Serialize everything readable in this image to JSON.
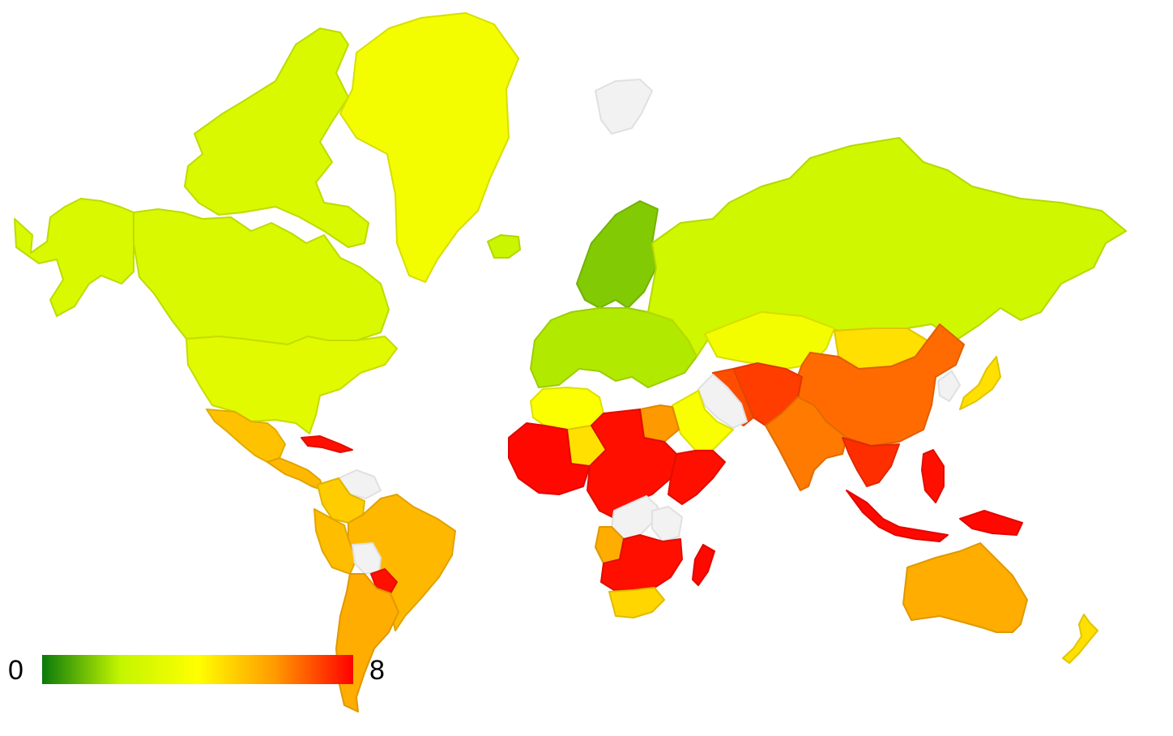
{
  "map": {
    "type": "choropleth",
    "scale_min": 0,
    "scale_max": 8,
    "legend_min_label": "0",
    "legend_max_label": "8",
    "color_stops": [
      "#0a7a0a",
      "#c3f500",
      "#ffff00",
      "#ff9900",
      "#ff0000"
    ],
    "no_data_color": "#f2f2f2",
    "regions": [
      {
        "id": "alaska",
        "value": 2.7
      },
      {
        "id": "canada",
        "value": 2.7
      },
      {
        "id": "canadian-arctic",
        "value": 2.7
      },
      {
        "id": "usa",
        "value": 3.0
      },
      {
        "id": "greenland",
        "value": 3.6
      },
      {
        "id": "iceland",
        "value": 2.2
      },
      {
        "id": "mexico",
        "value": 5.2
      },
      {
        "id": "central-america",
        "value": 5.4
      },
      {
        "id": "cuba",
        "value": 7.8
      },
      {
        "id": "venezuela",
        "value": null
      },
      {
        "id": "colombia",
        "value": 5.0
      },
      {
        "id": "peru",
        "value": 5.3
      },
      {
        "id": "brazil",
        "value": 5.4
      },
      {
        "id": "bolivia",
        "value": null
      },
      {
        "id": "paraguay",
        "value": 7.8
      },
      {
        "id": "argentina",
        "value": 5.6
      },
      {
        "id": "scandinavia",
        "value": 1.3
      },
      {
        "id": "europe",
        "value": 1.8
      },
      {
        "id": "russia",
        "value": 2.4
      },
      {
        "id": "svalbard",
        "value": null
      },
      {
        "id": "kazakhstan",
        "value": 3.6
      },
      {
        "id": "mongolia",
        "value": 4.6
      },
      {
        "id": "china",
        "value": 6.6
      },
      {
        "id": "japan",
        "value": 4.6
      },
      {
        "id": "korea",
        "value": null
      },
      {
        "id": "india",
        "value": 6.4
      },
      {
        "id": "pakistan-afghanistan",
        "value": 7.2
      },
      {
        "id": "iran",
        "value": 7.0
      },
      {
        "id": "saudi-arabia",
        "value": null
      },
      {
        "id": "yemen-oman",
        "value": 3.8
      },
      {
        "id": "southeast-asia",
        "value": 7.4
      },
      {
        "id": "indonesia",
        "value": 7.9
      },
      {
        "id": "philippines",
        "value": 7.8
      },
      {
        "id": "papua",
        "value": 7.9
      },
      {
        "id": "north-africa",
        "value": 3.9
      },
      {
        "id": "west-africa",
        "value": 7.9
      },
      {
        "id": "sahel",
        "value": 4.6
      },
      {
        "id": "central-africa",
        "value": 7.8
      },
      {
        "id": "egypt",
        "value": 6.0
      },
      {
        "id": "horn-of-africa",
        "value": 7.8
      },
      {
        "id": "drc",
        "value": null
      },
      {
        "id": "tanzania",
        "value": null
      },
      {
        "id": "angola",
        "value": 5.6
      },
      {
        "id": "southern-africa",
        "value": 7.8
      },
      {
        "id": "south-africa",
        "value": 4.8
      },
      {
        "id": "madagascar",
        "value": 7.9
      },
      {
        "id": "australia",
        "value": 5.6
      },
      {
        "id": "new-zealand",
        "value": 4.6
      }
    ]
  }
}
